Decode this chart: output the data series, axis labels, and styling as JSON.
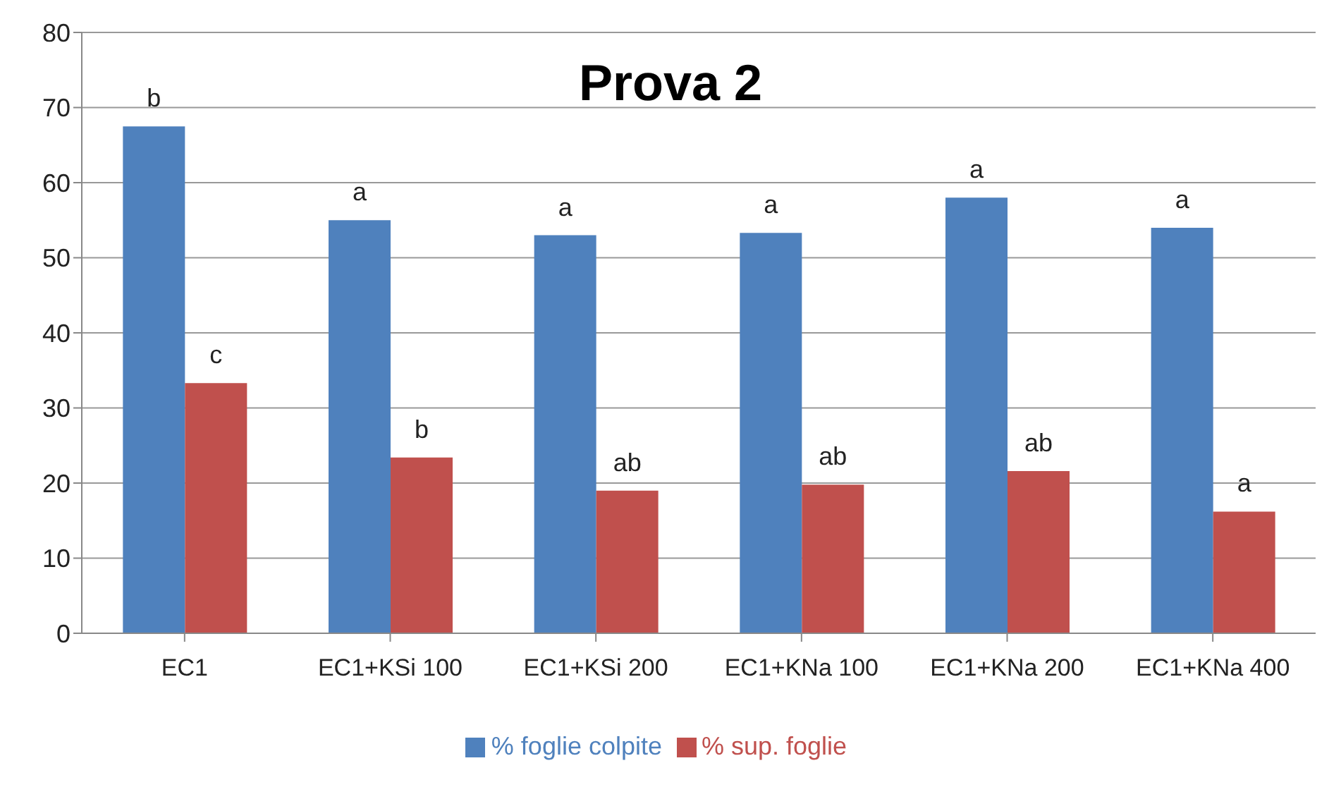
{
  "chart_data": {
    "type": "bar",
    "title": "Prova 2",
    "categories": [
      "EC1",
      "EC1+KSi 100",
      "EC1+KSi 200",
      "EC1+KNa 100",
      "EC1+KNa 200",
      "EC1+KNa 400"
    ],
    "series": [
      {
        "name": "% foglie colpite",
        "color": "#4f81bd",
        "values": [
          67.5,
          55,
          53,
          53.3,
          58,
          54
        ],
        "value_labels": [
          "b",
          "a",
          "a",
          "a",
          "a",
          "a"
        ]
      },
      {
        "name": "% sup. foglie",
        "color": "#c0504d",
        "values": [
          33.3,
          23.4,
          19,
          19.8,
          21.6,
          16.2
        ],
        "value_labels": [
          "c",
          "b",
          "ab",
          "ab",
          "ab",
          "a"
        ]
      }
    ],
    "ylim": [
      0,
      80
    ],
    "yticks": [
      0,
      10,
      20,
      30,
      40,
      50,
      60,
      70,
      80
    ],
    "grid": "y",
    "legend": "bottom"
  }
}
